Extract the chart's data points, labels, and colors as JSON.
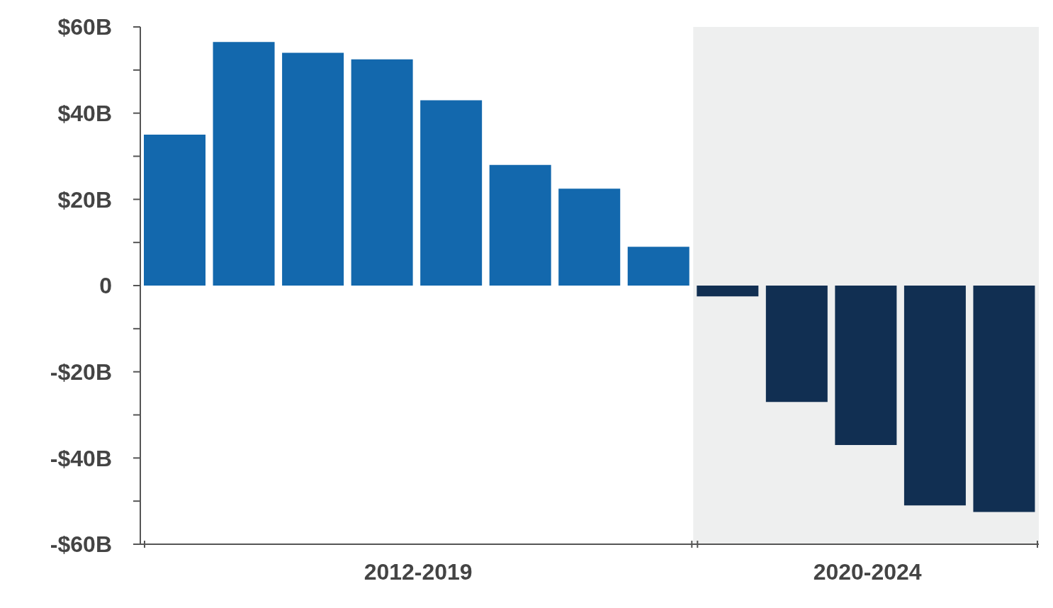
{
  "chart_data": {
    "type": "bar",
    "categories": [
      null,
      null,
      null,
      null,
      null,
      null,
      null,
      null,
      null,
      null,
      null,
      null,
      null
    ],
    "values": [
      35,
      56.5,
      54,
      52.5,
      43,
      28,
      22.5,
      9,
      -2.5,
      -27,
      -37,
      -51,
      -52.5
    ],
    "colors": [
      "#1368ad",
      "#1368ad",
      "#1368ad",
      "#1368ad",
      "#1368ad",
      "#1368ad",
      "#1368ad",
      "#1368ad",
      "#112f52",
      "#112f52",
      "#112f52",
      "#112f52",
      "#112f52"
    ],
    "ylim": [
      -60,
      60
    ],
    "yticks": [
      {
        "value": -60,
        "label": "-$60B"
      },
      {
        "value": -50,
        "label": null
      },
      {
        "value": -40,
        "label": "-$40B"
      },
      {
        "value": -30,
        "label": null
      },
      {
        "value": -20,
        "label": "-$20B"
      },
      {
        "value": -10,
        "label": null
      },
      0,
      {
        "value": 10,
        "label": null
      },
      {
        "value": 20,
        "label": "$20B"
      },
      {
        "value": 30,
        "label": null
      },
      {
        "value": 40,
        "label": "$40B"
      },
      {
        "value": 50,
        "label": null
      },
      {
        "value": 60,
        "label": "$60B"
      }
    ],
    "annotations": [
      "2012-2019",
      "2020-2024"
    ],
    "grid": false,
    "legend": false
  }
}
